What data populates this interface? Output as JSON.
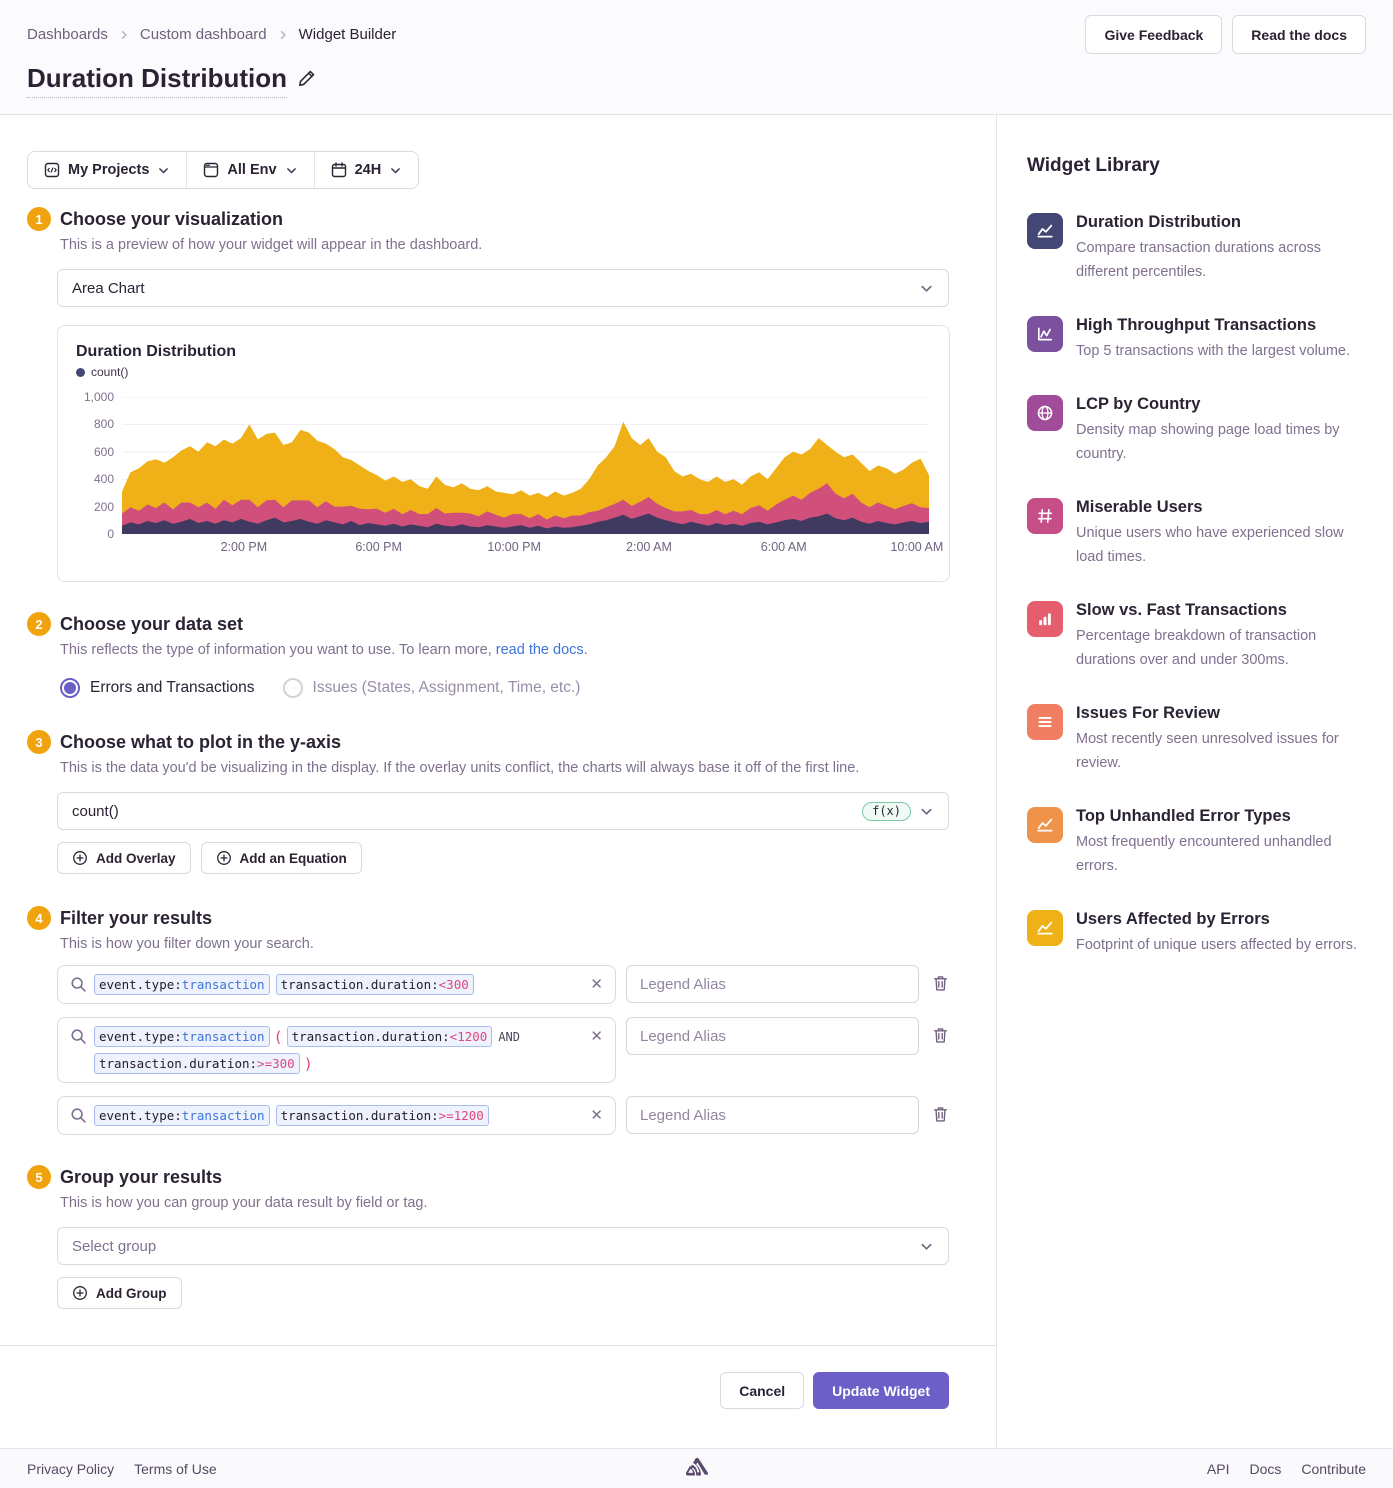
{
  "breadcrumb": {
    "items": [
      "Dashboards",
      "Custom dashboard",
      "Widget Builder"
    ]
  },
  "header": {
    "give_feedback": "Give Feedback",
    "read_docs": "Read the docs",
    "title": "Duration Distribution"
  },
  "page_filters": {
    "projects": "My Projects",
    "environment": "All Env",
    "time": "24H"
  },
  "steps": {
    "step1": {
      "num": "1",
      "title": "Choose your visualization",
      "desc": "This is a preview of how your widget will appear in the dashboard.",
      "display_type": "Area Chart"
    },
    "step2": {
      "num": "2",
      "title": "Choose your data set",
      "desc_prefix": "This reflects the type of information you want to use. To learn more, ",
      "desc_link": "read the docs",
      "desc_suffix": ".",
      "radio_selected": "Errors and Transactions",
      "radio_unselected": "Issues (States, Assignment, Time, etc.)"
    },
    "step3": {
      "num": "3",
      "title": "Choose what to plot in the y-axis",
      "desc": "This is the data you'd be visualizing in the display. If the overlay units conflict, the charts will always base it off of the first line.",
      "field_value": "count()",
      "fx_label": "f(x)",
      "add_overlay": "Add Overlay",
      "add_equation": "Add an Equation"
    },
    "step4": {
      "num": "4",
      "title": "Filter your results",
      "desc": "This is how you filter down your search.",
      "legend_placeholder": "Legend Alias",
      "rows": [
        {
          "segments": [
            {
              "type": "token",
              "parts": [
                {
                  "cls": "key",
                  "text": "event.type:"
                },
                {
                  "cls": "val",
                  "text": "transaction"
                }
              ]
            },
            {
              "type": "token",
              "parts": [
                {
                  "cls": "key",
                  "text": "transaction.duration:"
                },
                {
                  "cls": "num",
                  "text": "<300"
                }
              ]
            }
          ]
        },
        {
          "segments": [
            {
              "type": "token",
              "parts": [
                {
                  "cls": "key",
                  "text": "event.type:"
                },
                {
                  "cls": "val",
                  "text": "transaction"
                }
              ]
            },
            {
              "type": "paren",
              "text": "("
            },
            {
              "type": "token",
              "parts": [
                {
                  "cls": "key",
                  "text": "transaction.duration:"
                },
                {
                  "cls": "num",
                  "text": "<1200"
                }
              ]
            },
            {
              "type": "op",
              "text": "AND"
            },
            {
              "type": "token",
              "parts": [
                {
                  "cls": "key",
                  "text": "transaction.duration:"
                },
                {
                  "cls": "num",
                  "text": ">=300"
                }
              ]
            },
            {
              "type": "paren",
              "text": ")"
            }
          ]
        },
        {
          "segments": [
            {
              "type": "token",
              "parts": [
                {
                  "cls": "key",
                  "text": "event.type:"
                },
                {
                  "cls": "val",
                  "text": "transaction"
                }
              ]
            },
            {
              "type": "token",
              "parts": [
                {
                  "cls": "key",
                  "text": "transaction.duration:"
                },
                {
                  "cls": "num",
                  "text": ">=1200"
                }
              ]
            }
          ]
        }
      ]
    },
    "step5": {
      "num": "5",
      "title": "Group your results",
      "desc": "This is how you can group your data result by field or tag.",
      "select_placeholder": "Select group",
      "add_group": "Add Group"
    }
  },
  "actions": {
    "cancel": "Cancel",
    "update": "Update Widget"
  },
  "widget_library": {
    "title": "Widget Library",
    "items": [
      {
        "title": "Duration Distribution",
        "desc": "Compare transaction durations across different percentiles.",
        "icon": "area-chart-icon",
        "color": "#444674"
      },
      {
        "title": "High Throughput Transactions",
        "desc": "Top 5 transactions with the largest volume.",
        "icon": "line-chart-icon",
        "color": "#7B519E"
      },
      {
        "title": "LCP by Country",
        "desc": "Density map showing page load times by country.",
        "icon": "globe-icon",
        "color": "#A14C98"
      },
      {
        "title": "Miserable Users",
        "desc": "Unique users who have experienced slow load times.",
        "icon": "hash-icon",
        "color": "#C54D88"
      },
      {
        "title": "Slow vs. Fast Transactions",
        "desc": "Percentage breakdown of transaction durations over and under 300ms.",
        "icon": "bar-chart-icon",
        "color": "#E65D6E"
      },
      {
        "title": "Issues For Review",
        "desc": "Most recently seen unresolved issues for review.",
        "icon": "list-icon",
        "color": "#EF7E62"
      },
      {
        "title": "Top Unhandled Error Types",
        "desc": "Most frequently encountered unhandled errors.",
        "icon": "area-chart-icon",
        "color": "#F0934A"
      },
      {
        "title": "Users Affected by Errors",
        "desc": "Footprint of unique users affected by errors.",
        "icon": "area-chart-icon",
        "color": "#EFB118"
      }
    ]
  },
  "footer": {
    "left": [
      "Privacy Policy",
      "Terms of Use"
    ],
    "right": [
      "API",
      "Docs",
      "Contribute"
    ]
  },
  "chart_data": {
    "type": "area",
    "stacked": true,
    "title": "Duration Distribution",
    "legend": [
      "count()"
    ],
    "legend_color": "#444674",
    "ylim": [
      0,
      1000
    ],
    "grid": true,
    "y_ticks": [
      {
        "value": 0,
        "label": "0"
      },
      {
        "value": 200,
        "label": "200"
      },
      {
        "value": 400,
        "label": "400"
      },
      {
        "value": 600,
        "label": "600"
      },
      {
        "value": 800,
        "label": "800"
      },
      {
        "value": 1000,
        "label": "1,000"
      }
    ],
    "x_ticks": [
      {
        "label": "2:00 PM",
        "pos": 0.151
      },
      {
        "label": "6:00 PM",
        "pos": 0.318
      },
      {
        "label": "10:00 PM",
        "pos": 0.486
      },
      {
        "label": "2:00 AM",
        "pos": 0.653
      },
      {
        "label": "6:00 AM",
        "pos": 0.82
      },
      {
        "label": "10:00 AM",
        "pos": 0.985
      }
    ],
    "series": [
      {
        "name": "count() stack total (top edge, yellow)",
        "color": "#F0B018",
        "values": [
          310,
          450,
          480,
          530,
          545,
          520,
          560,
          610,
          640,
          600,
          670,
          640,
          690,
          660,
          700,
          800,
          690,
          730,
          740,
          650,
          670,
          760,
          740,
          680,
          660,
          620,
          560,
          540,
          500,
          460,
          430,
          390,
          420,
          380,
          400,
          350,
          330,
          420,
          360,
          340,
          370,
          330,
          320,
          350,
          310,
          300,
          290,
          320,
          280,
          300,
          270,
          310,
          280,
          300,
          330,
          400,
          500,
          560,
          640,
          820,
          700,
          650,
          700,
          600,
          560,
          460,
          420,
          440,
          400,
          380,
          420,
          380,
          400,
          360,
          420,
          450,
          400,
          480,
          560,
          600,
          580,
          620,
          700,
          650,
          600,
          560,
          580,
          520,
          460,
          500,
          480,
          440,
          470,
          520,
          550,
          430
        ]
      },
      {
        "name": "count() middle stack (top edge, pink)",
        "color": "#D1507B",
        "values": [
          150,
          195,
          170,
          215,
          190,
          230,
          180,
          230,
          230,
          195,
          230,
          185,
          250,
          210,
          250,
          250,
          195,
          245,
          250,
          195,
          245,
          245,
          245,
          195,
          240,
          200,
          200,
          205,
          185,
          180,
          185,
          155,
          185,
          145,
          175,
          145,
          145,
          190,
          150,
          155,
          155,
          150,
          130,
          165,
          140,
          120,
          145,
          145,
          115,
          145,
          105,
          135,
          115,
          135,
          135,
          160,
          170,
          195,
          220,
          250,
          205,
          235,
          270,
          220,
          190,
          165,
          165,
          175,
          145,
          145,
          175,
          145,
          170,
          145,
          190,
          210,
          170,
          215,
          250,
          280,
          250,
          300,
          330,
          370,
          295,
          260,
          295,
          230,
          195,
          230,
          205,
          180,
          205,
          225,
          195,
          190
        ]
      },
      {
        "name": "count() bottom stack (top edge, navy)",
        "color": "#413A60",
        "values": [
          60,
          85,
          70,
          95,
          80,
          100,
          75,
          90,
          110,
          80,
          95,
          75,
          100,
          85,
          110,
          90,
          75,
          100,
          120,
          85,
          95,
          110,
          90,
          75,
          100,
          85,
          70,
          95,
          65,
          80,
          70,
          60,
          75,
          55,
          70,
          60,
          50,
          75,
          60,
          55,
          70,
          55,
          50,
          65,
          55,
          45,
          55,
          65,
          45,
          60,
          40,
          55,
          45,
          50,
          60,
          70,
          90,
          100,
          120,
          140,
          110,
          130,
          150,
          120,
          100,
          85,
          70,
          90,
          75,
          60,
          80,
          65,
          75,
          60,
          80,
          90,
          70,
          85,
          100,
          110,
          95,
          120,
          130,
          150,
          115,
          100,
          120,
          90,
          75,
          95,
          80,
          70,
          85,
          95,
          80,
          90
        ]
      }
    ]
  }
}
